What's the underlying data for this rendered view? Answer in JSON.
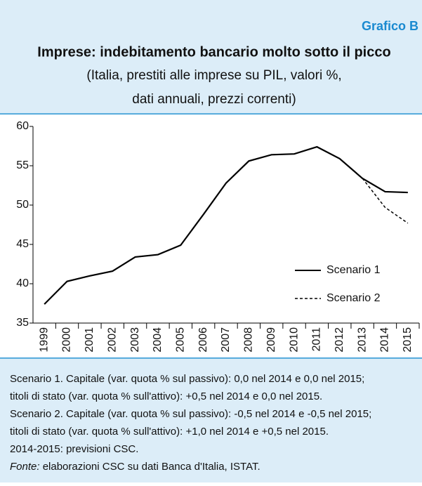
{
  "header": {
    "label": "Grafico B"
  },
  "chart_data": {
    "type": "line",
    "title": "Imprese: indebitamento bancario molto sotto il picco",
    "subtitle": [
      "(Italia, prestiti alle imprese su PIL, valori %,",
      "dati annuali, prezzi correnti)"
    ],
    "categories": [
      "1999",
      "2000",
      "2001",
      "2002",
      "2003",
      "2004",
      "2005",
      "2006",
      "2007",
      "2008",
      "2009",
      "2010",
      "2011",
      "2012",
      "2013",
      "2014",
      "2015"
    ],
    "series": [
      {
        "name": "Scenario 1",
        "color": "#000000",
        "dash": false,
        "values": [
          37.4,
          40.3,
          41.0,
          41.6,
          43.4,
          43.7,
          44.9,
          48.8,
          52.8,
          55.6,
          56.4,
          56.5,
          57.4,
          55.9,
          53.4,
          51.7,
          51.6
        ]
      },
      {
        "name": "Scenario 2",
        "color": "#000000",
        "dash": true,
        "values": [
          null,
          null,
          null,
          null,
          null,
          null,
          null,
          null,
          null,
          null,
          null,
          null,
          null,
          null,
          53.4,
          49.7,
          47.7
        ]
      }
    ],
    "ylim": [
      35,
      60
    ],
    "yticks": [
      35,
      40,
      45,
      50,
      55,
      60
    ],
    "legend": "right"
  },
  "notes": [
    "Scenario 1. Capitale (var. quota % sul passivo): 0,0 nel 2014 e 0,0 nel 2015;",
    "titoli di stato (var. quota % sull'attivo): +0,5 nel 2014 e 0,0 nel 2015.",
    "Scenario 2. Capitale (var. quota % sul passivo): -0,5 nel 2014 e -0,5 nel 2015;",
    "titoli di stato (var. quota % sull'attivo): +1,0 nel 2014 e +0,5 nel 2015.",
    "2014-2015: previsioni CSC."
  ],
  "source": {
    "label": "Fonte:",
    "text": " elaborazioni CSC su dati Banca d'Italia, ISTAT."
  }
}
